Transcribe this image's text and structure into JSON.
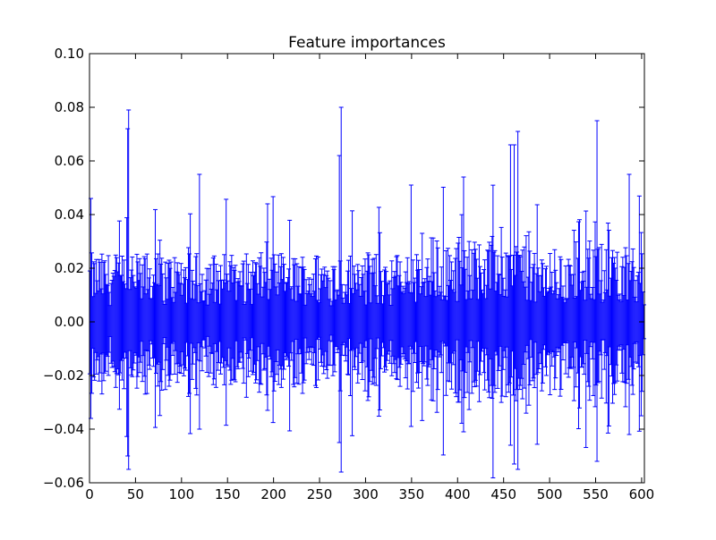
{
  "chart_data": {
    "type": "bar",
    "title": "Feature importances",
    "xlabel": "",
    "ylabel": "",
    "xlim": [
      0,
      603
    ],
    "ylim": [
      -0.06,
      0.1
    ],
    "xticks": [
      0,
      50,
      100,
      150,
      200,
      250,
      300,
      350,
      400,
      450,
      500,
      550,
      600
    ],
    "yticks": [
      -0.06,
      -0.04,
      -0.02,
      0.0,
      0.02,
      0.04,
      0.06,
      0.08,
      0.1
    ],
    "ytick_labels": [
      "−0.06",
      "−0.04",
      "−0.02",
      "0.00",
      "0.02",
      "0.04",
      "0.06",
      "0.08",
      "0.10"
    ],
    "n_features": 603,
    "bar_height_approx": 0.0,
    "error_bars": {
      "color": "#0000ff",
      "note_values": "Representative error-bar half-widths (std) per feature index; mean importances ~0.0",
      "peaks": [
        {
          "x": 1,
          "err": 0.046,
          "neg": 0.036
        },
        {
          "x": 41,
          "err": 0.072,
          "neg": 0.05
        },
        {
          "x": 42,
          "err": 0.079,
          "neg": 0.055
        },
        {
          "x": 119,
          "err": 0.055,
          "neg": 0.04
        },
        {
          "x": 193,
          "err": 0.044,
          "neg": 0.033
        },
        {
          "x": 271,
          "err": 0.062,
          "neg": 0.045
        },
        {
          "x": 273,
          "err": 0.08,
          "neg": 0.056
        },
        {
          "x": 349,
          "err": 0.051,
          "neg": 0.039
        },
        {
          "x": 406,
          "err": 0.054,
          "neg": 0.041
        },
        {
          "x": 457,
          "err": 0.066,
          "neg": 0.046
        },
        {
          "x": 461,
          "err": 0.066,
          "neg": 0.053
        },
        {
          "x": 465,
          "err": 0.071,
          "neg": 0.055
        },
        {
          "x": 551,
          "err": 0.075,
          "neg": 0.052
        },
        {
          "x": 586,
          "err": 0.055,
          "neg": 0.042
        }
      ],
      "baseline_err": 0.018
    }
  }
}
